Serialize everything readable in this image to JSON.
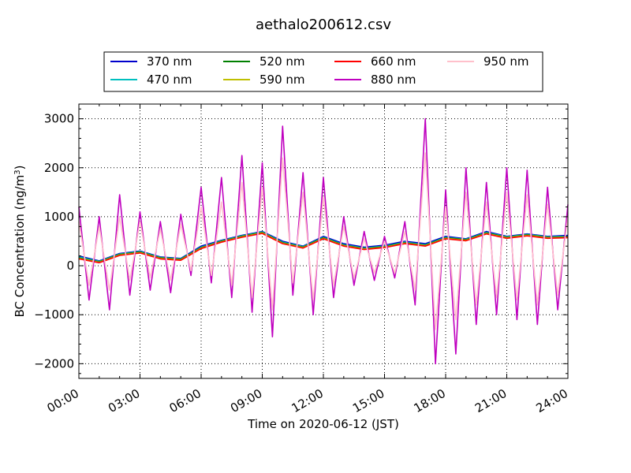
{
  "chart_data": {
    "type": "line",
    "title": "aethalo200612.csv",
    "xlabel": "Time on 2020-06-12 (JST)",
    "ylabel": "BC Concentration (ng/m³)",
    "ylabel_main": "BC Concentration (ng/m",
    "ylabel_sup": "3",
    "ylabel_tail": ")",
    "ylim": [
      -2300,
      3300
    ],
    "xlim": [
      0,
      24
    ],
    "grid": true,
    "legend_position": "top-center",
    "x_ticks": [
      "00:00",
      "03:00",
      "06:00",
      "09:00",
      "12:00",
      "15:00",
      "18:00",
      "21:00",
      "24:00"
    ],
    "y_ticks": [
      3000,
      2000,
      1000,
      0,
      -1000,
      -2000
    ],
    "y_tick_labels": [
      "3000",
      "2000",
      "1000",
      "0",
      "−1000",
      "−2000"
    ],
    "x_unit": "hours",
    "series": [
      {
        "name": "370 nm",
        "color": "#0000cc",
        "x": [
          0,
          1,
          2,
          3,
          4,
          5,
          6,
          7,
          8,
          9,
          10,
          11,
          12,
          13,
          14,
          15,
          16,
          17,
          18,
          19,
          20,
          21,
          22,
          23,
          24
        ],
        "values": [
          200,
          100,
          250,
          300,
          180,
          150,
          400,
          520,
          620,
          700,
          500,
          400,
          600,
          450,
          380,
          420,
          500,
          450,
          600,
          550,
          700,
          600,
          650,
          600,
          620
        ]
      },
      {
        "name": "470 nm",
        "color": "#00bfbf",
        "x": [
          0,
          1,
          2,
          3,
          4,
          5,
          6,
          7,
          8,
          9,
          10,
          11,
          12,
          13,
          14,
          15,
          16,
          17,
          18,
          19,
          20,
          21,
          22,
          23,
          24
        ],
        "values": [
          180,
          90,
          240,
          290,
          170,
          140,
          380,
          510,
          610,
          690,
          480,
          390,
          580,
          430,
          360,
          400,
          480,
          430,
          580,
          540,
          680,
          590,
          640,
          590,
          600
        ]
      },
      {
        "name": "520 nm",
        "color": "#008000",
        "x": [
          0,
          1,
          2,
          3,
          4,
          5,
          6,
          7,
          8,
          9,
          10,
          11,
          12,
          13,
          14,
          15,
          16,
          17,
          18,
          19,
          20,
          21,
          22,
          23,
          24
        ],
        "values": [
          160,
          80,
          230,
          280,
          160,
          130,
          370,
          500,
          600,
          680,
          470,
          380,
          570,
          420,
          350,
          390,
          470,
          420,
          570,
          530,
          670,
          580,
          630,
          580,
          590
        ]
      },
      {
        "name": "590 nm",
        "color": "#bfbf00",
        "x": [
          0,
          1,
          2,
          3,
          4,
          5,
          6,
          7,
          8,
          9,
          10,
          11,
          12,
          13,
          14,
          15,
          16,
          17,
          18,
          19,
          20,
          21,
          22,
          23,
          24
        ],
        "values": [
          150,
          70,
          220,
          270,
          150,
          120,
          360,
          490,
          590,
          670,
          460,
          370,
          560,
          410,
          340,
          380,
          460,
          410,
          560,
          520,
          660,
          570,
          620,
          570,
          580
        ]
      },
      {
        "name": "660 nm",
        "color": "#ff0000",
        "x": [
          0,
          1,
          2,
          3,
          4,
          5,
          6,
          7,
          8,
          9,
          10,
          11,
          12,
          13,
          14,
          15,
          16,
          17,
          18,
          19,
          20,
          21,
          22,
          23,
          24
        ],
        "values": [
          140,
          60,
          210,
          260,
          140,
          110,
          350,
          480,
          580,
          660,
          450,
          360,
          550,
          400,
          330,
          370,
          450,
          400,
          550,
          510,
          650,
          560,
          610,
          560,
          570
        ]
      },
      {
        "name": "880 nm",
        "color": "#bf00bf",
        "x": [
          0,
          0.5,
          1,
          1.5,
          2,
          2.5,
          3,
          3.5,
          4,
          4.5,
          5,
          5.5,
          6,
          6.5,
          7,
          7.5,
          8,
          8.5,
          9,
          9.5,
          10,
          10.5,
          11,
          11.5,
          12,
          12.5,
          13,
          13.5,
          14,
          14.5,
          15,
          15.5,
          16,
          16.5,
          17,
          17.5,
          18,
          18.5,
          19,
          19.5,
          20,
          20.5,
          21,
          21.5,
          22,
          22.5,
          23,
          23.5,
          24
        ],
        "values": [
          1200,
          -700,
          1000,
          -900,
          1450,
          -600,
          1100,
          -500,
          900,
          -550,
          1050,
          -200,
          1600,
          -350,
          1800,
          -650,
          2250,
          -950,
          2100,
          -1450,
          2850,
          -600,
          1900,
          -1000,
          1800,
          -650,
          1000,
          -400,
          700,
          -300,
          600,
          -250,
          900,
          -800,
          3000,
          -2000,
          1550,
          -1800,
          2000,
          -1200,
          1700,
          -1000,
          2000,
          -1100,
          1950,
          -1200,
          1600,
          -900,
          1250
        ]
      },
      {
        "name": "950 nm",
        "color": "#ffc0cb",
        "x": [
          0,
          0.5,
          1,
          1.5,
          2,
          2.5,
          3,
          3.5,
          4,
          4.5,
          5,
          5.5,
          6,
          6.5,
          7,
          7.5,
          8,
          8.5,
          9,
          9.5,
          10,
          10.5,
          11,
          11.5,
          12,
          12.5,
          13,
          13.5,
          14,
          14.5,
          15,
          15.5,
          16,
          16.5,
          17,
          17.5,
          18,
          18.5,
          19,
          19.5,
          20,
          20.5,
          21,
          21.5,
          22,
          22.5,
          23,
          23.5,
          24
        ],
        "values": [
          900,
          -400,
          800,
          -500,
          1000,
          -300,
          900,
          -250,
          750,
          -300,
          850,
          -100,
          1200,
          -200,
          1300,
          -400,
          1700,
          -650,
          1600,
          -900,
          2200,
          -350,
          1500,
          -700,
          1400,
          -400,
          800,
          -250,
          550,
          -150,
          500,
          -150,
          700,
          -500,
          2300,
          -1300,
          1200,
          -1100,
          1500,
          -800,
          1300,
          -650,
          1500,
          -700,
          1450,
          -800,
          1250,
          -600,
          1000
        ]
      }
    ]
  }
}
